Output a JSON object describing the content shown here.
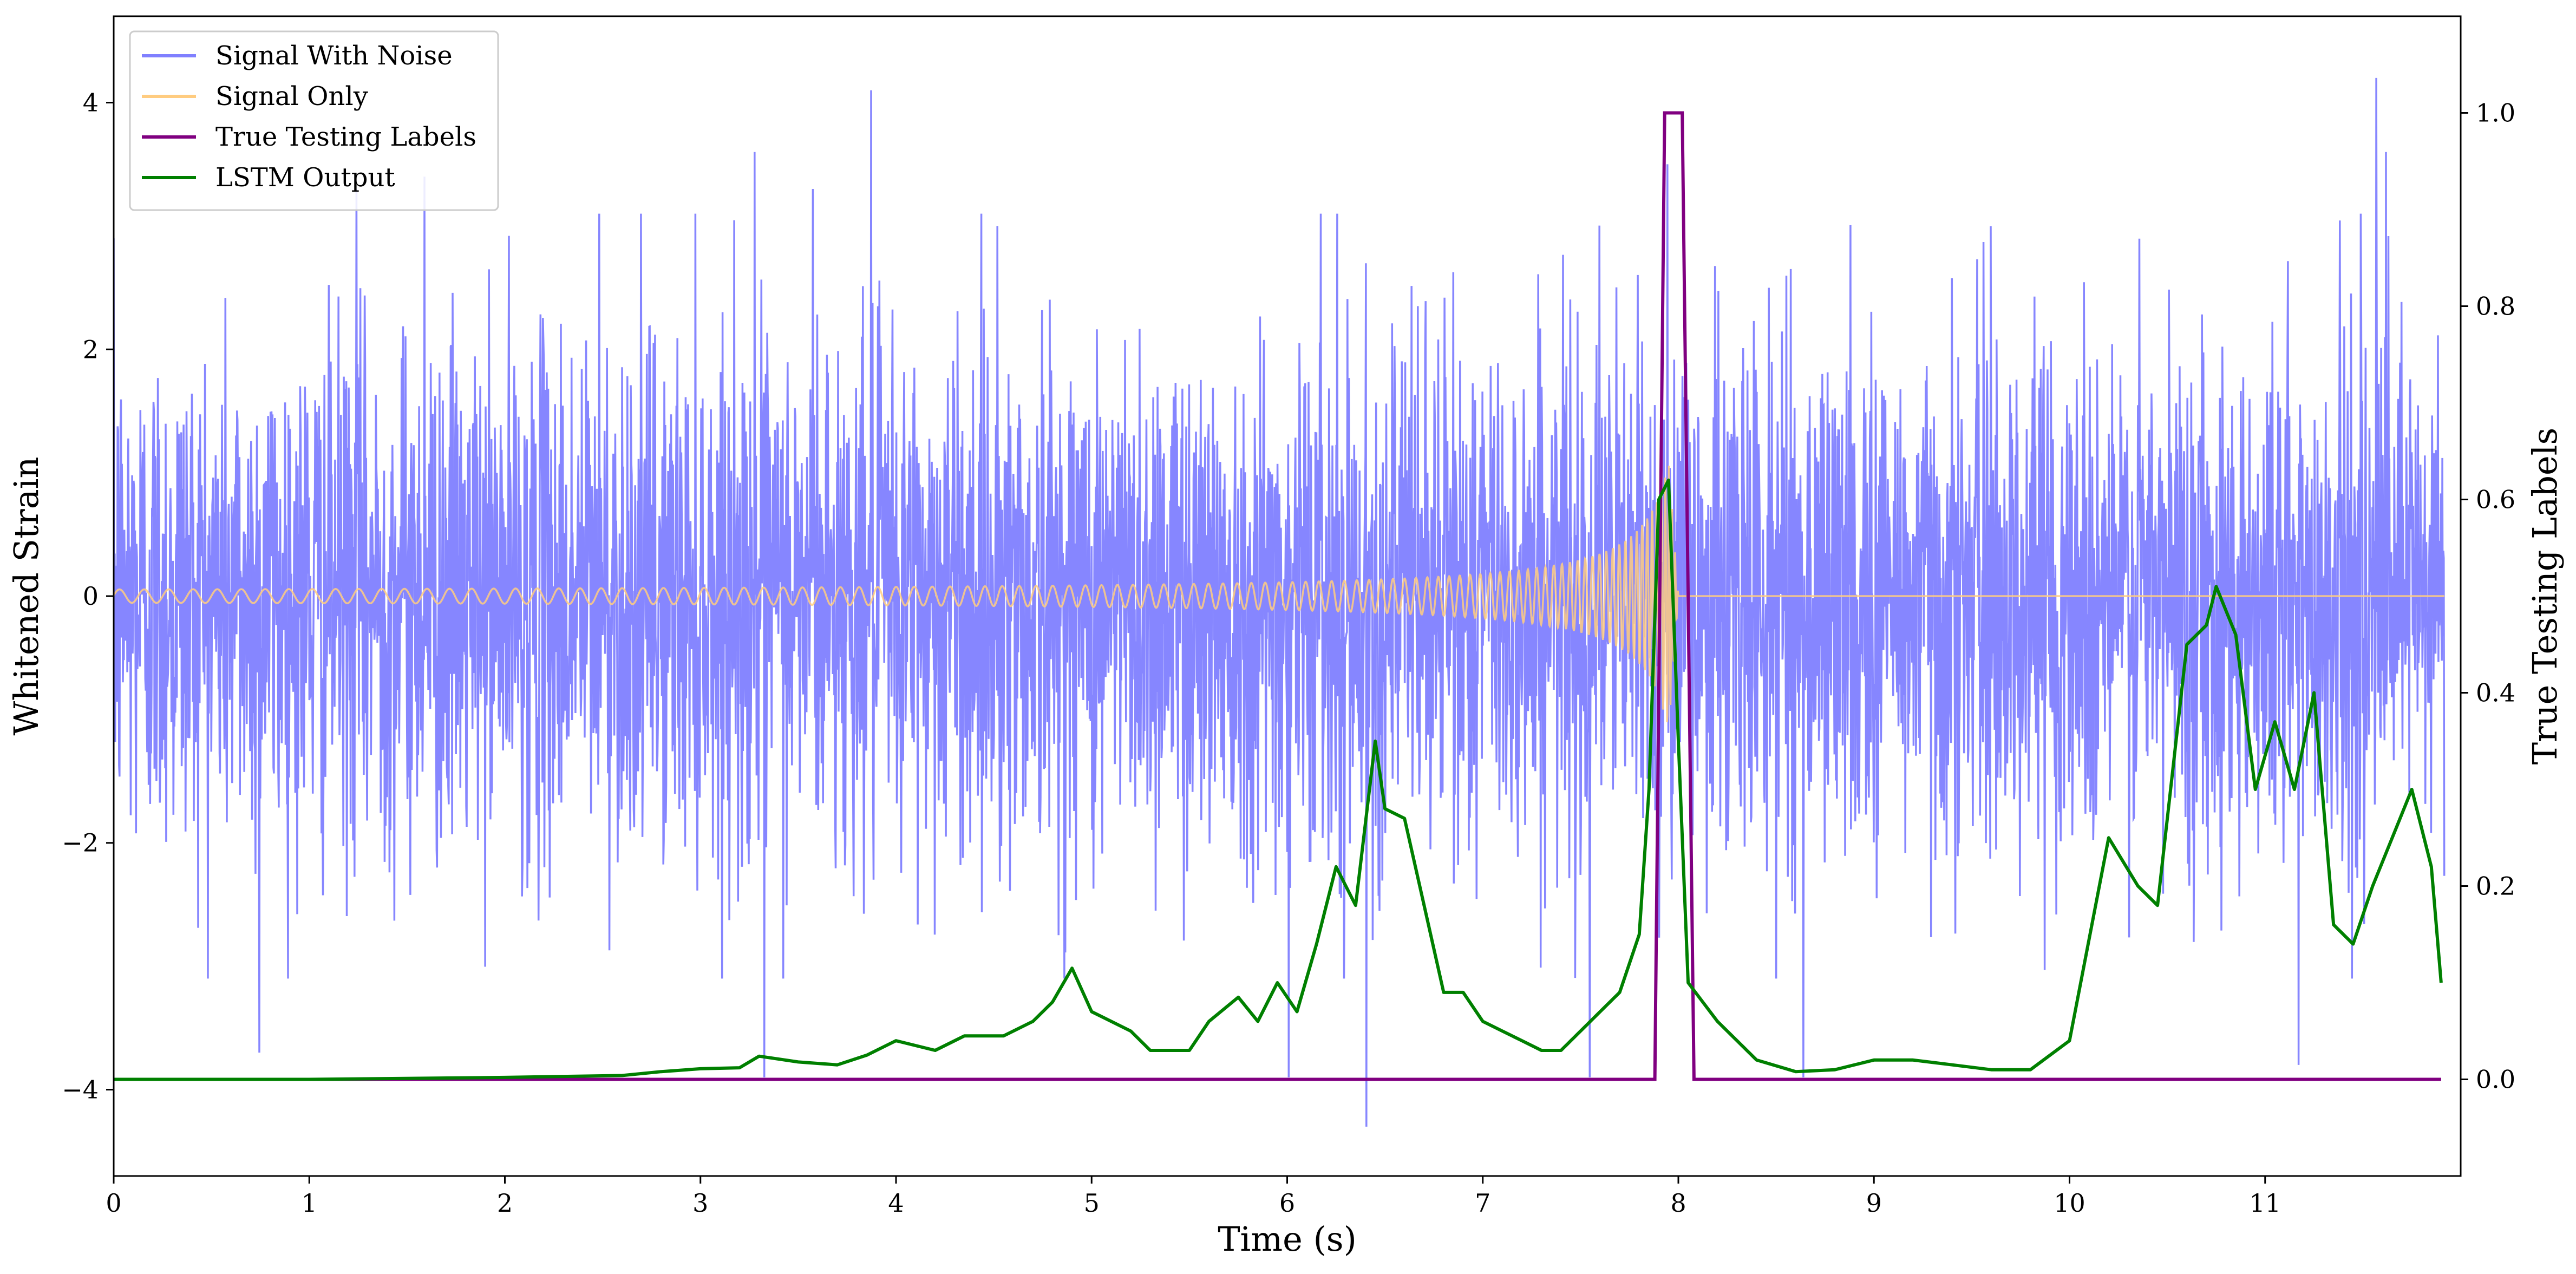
{
  "chart_data": {
    "type": "line",
    "xlabel": "Time (s)",
    "ylabel": "Whitened Strain",
    "y2label": "True Testing Labels",
    "xlim": [
      0,
      12
    ],
    "ylim": [
      -4.7,
      4.7
    ],
    "y2lim": [
      -0.1,
      1.1
    ],
    "xticks": [
      0,
      1,
      2,
      3,
      4,
      5,
      6,
      7,
      8,
      9,
      10,
      11
    ],
    "yticks": [
      -4,
      -2,
      0,
      2,
      4
    ],
    "y2ticks": [
      0.0,
      0.2,
      0.4,
      0.6,
      0.8,
      1.0
    ],
    "legend_position": "top-left",
    "colors": {
      "noise": "#8080ff",
      "signal": "#ffcc80",
      "labels": "#800080",
      "lstm": "#008000"
    },
    "series": [
      {
        "name": "Signal With Noise",
        "axis": "left",
        "color": "#8080ff",
        "description_values": {
          "typical_amplitude": 1.1,
          "max_peak": 4.2,
          "min_trough": -4.3
        },
        "peaks": [
          [
            0.75,
            -3.7
          ],
          [
            1.25,
            3.3
          ],
          [
            1.6,
            3.4
          ],
          [
            2.5,
            3.1
          ],
          [
            3.3,
            3.6
          ],
          [
            3.35,
            -3.9
          ],
          [
            3.6,
            3.3
          ],
          [
            3.9,
            4.1
          ],
          [
            4.55,
            3.0
          ],
          [
            6.05,
            -3.9
          ],
          [
            6.3,
            3.1
          ],
          [
            6.45,
            -4.3
          ],
          [
            7.6,
            -3.9
          ],
          [
            8.0,
            3.5
          ],
          [
            8.7,
            -3.9
          ],
          [
            11.25,
            -3.8
          ],
          [
            11.65,
            4.2
          ],
          [
            11.7,
            3.6
          ]
        ]
      },
      {
        "name": "Signal Only",
        "axis": "left",
        "color": "#ffcc80",
        "chirp_end": 7.95,
        "peak_amplitude": 1.1
      },
      {
        "name": "True Testing Labels",
        "axis": "right",
        "color": "#800080",
        "x": [
          0,
          7.88,
          7.93,
          8.02,
          8.08,
          11.9
        ],
        "y": [
          0,
          0,
          1.0,
          1.0,
          0,
          0
        ]
      },
      {
        "name": "LSTM Output",
        "axis": "right",
        "color": "#008000",
        "x": [
          0,
          1,
          2,
          2.6,
          2.8,
          3.0,
          3.2,
          3.3,
          3.5,
          3.7,
          3.85,
          4.0,
          4.2,
          4.35,
          4.55,
          4.7,
          4.8,
          4.9,
          5.0,
          5.2,
          5.3,
          5.4,
          5.5,
          5.6,
          5.75,
          5.85,
          5.95,
          6.05,
          6.15,
          6.25,
          6.35,
          6.45,
          6.5,
          6.6,
          6.7,
          6.8,
          6.9,
          7.0,
          7.1,
          7.2,
          7.3,
          7.4,
          7.5,
          7.6,
          7.7,
          7.8,
          7.85,
          7.9,
          7.95,
          8.0,
          8.05,
          8.2,
          8.4,
          8.6,
          8.8,
          9.0,
          9.2,
          9.4,
          9.6,
          9.8,
          10.0,
          10.2,
          10.35,
          10.45,
          10.6,
          10.7,
          10.75,
          10.85,
          10.95,
          11.05,
          11.15,
          11.25,
          11.35,
          11.45,
          11.55,
          11.65,
          11.75,
          11.85,
          11.9
        ],
        "y": [
          0,
          0,
          0.002,
          0.004,
          0.008,
          0.011,
          0.012,
          0.024,
          0.018,
          0.015,
          0.025,
          0.04,
          0.03,
          0.045,
          0.045,
          0.06,
          0.08,
          0.115,
          0.07,
          0.05,
          0.03,
          0.03,
          0.03,
          0.06,
          0.085,
          0.06,
          0.1,
          0.07,
          0.14,
          0.22,
          0.18,
          0.35,
          0.28,
          0.27,
          0.18,
          0.09,
          0.09,
          0.06,
          0.05,
          0.04,
          0.03,
          0.03,
          0.05,
          0.07,
          0.09,
          0.15,
          0.3,
          0.6,
          0.62,
          0.35,
          0.1,
          0.06,
          0.02,
          0.008,
          0.01,
          0.02,
          0.02,
          0.015,
          0.01,
          0.01,
          0.04,
          0.25,
          0.2,
          0.18,
          0.45,
          0.47,
          0.51,
          0.46,
          0.3,
          0.37,
          0.3,
          0.4,
          0.16,
          0.14,
          0.2,
          0.25,
          0.3,
          0.22,
          0.1
        ]
      }
    ]
  }
}
